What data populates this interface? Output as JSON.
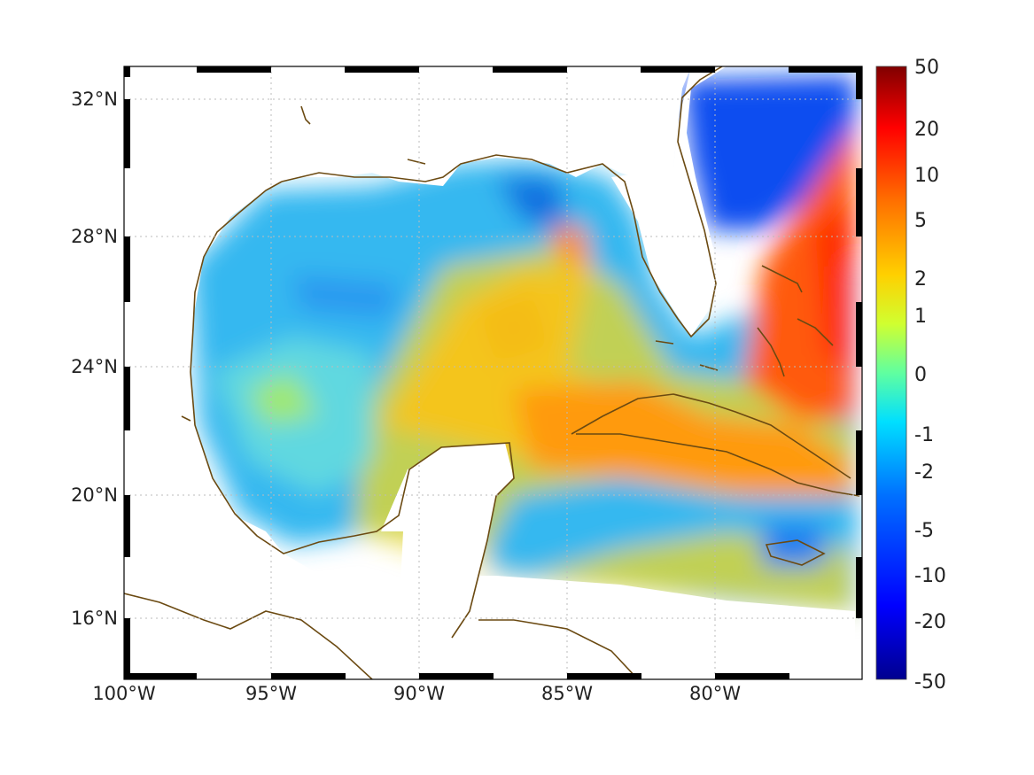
{
  "map": {
    "projection": "equirectangular",
    "lon_range": [
      -100,
      -75.2
    ],
    "lat_range": [
      14.2,
      33
    ],
    "lon_ticks": [
      {
        "value": -100,
        "label": "100°W"
      },
      {
        "value": -95,
        "label": "95°W"
      },
      {
        "value": -90,
        "label": "90°W"
      },
      {
        "value": -85,
        "label": "85°W"
      },
      {
        "value": -80,
        "label": "80°W"
      }
    ],
    "lat_ticks": [
      {
        "value": 32,
        "label": "32°N"
      },
      {
        "value": 28,
        "label": "28°N"
      },
      {
        "value": 24,
        "label": "24°N"
      },
      {
        "value": 20,
        "label": "20°N"
      },
      {
        "value": 16,
        "label": "16°N"
      }
    ],
    "grid": "dotted",
    "frame_style": "black-white checkered border",
    "coastline_color": "#6b4a12",
    "land_color": "#ffffff",
    "colormap": "jet"
  },
  "colorbar": {
    "scale": "nonlinear",
    "labels": [
      "50",
      "20",
      "10",
      "5",
      "2",
      "1",
      "0",
      "-1",
      "-2",
      "-5",
      "-10",
      "-20",
      "-50"
    ],
    "position": "right"
  }
}
